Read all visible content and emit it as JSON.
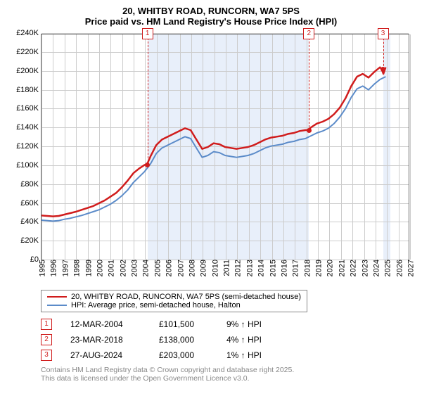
{
  "title_line1": "20, WHITBY ROAD, RUNCORN, WA7 5PS",
  "title_line2": "Price paid vs. HM Land Registry's House Price Index (HPI)",
  "chart": {
    "type": "line",
    "background_color": "#ffffff",
    "plot_border_color": "#666666",
    "grid_color": "#cccccc",
    "shade_color": "#e8effa",
    "marker_color": "#d01c1c",
    "title_fontsize": 13,
    "tick_fontsize": 11,
    "x": {
      "min": 1995,
      "max": 2027,
      "ticks": [
        1995,
        1996,
        1997,
        1998,
        1999,
        2000,
        2001,
        2002,
        2003,
        2004,
        2005,
        2006,
        2007,
        2008,
        2009,
        2010,
        2011,
        2012,
        2013,
        2014,
        2015,
        2016,
        2017,
        2018,
        2019,
        2020,
        2021,
        2022,
        2023,
        2024,
        2025,
        2026,
        2027
      ],
      "labels": [
        "1995",
        "1996",
        "1997",
        "1998",
        "1999",
        "2000",
        "2001",
        "2002",
        "2003",
        "2004",
        "2005",
        "2006",
        "2007",
        "2008",
        "2009",
        "2010",
        "2011",
        "2012",
        "2013",
        "2014",
        "2015",
        "2016",
        "2017",
        "2018",
        "2019",
        "2020",
        "2021",
        "2022",
        "2023",
        "2024",
        "2025",
        "2026",
        "2027"
      ]
    },
    "y": {
      "min": 0,
      "max": 240000,
      "ticks": [
        0,
        20000,
        40000,
        60000,
        80000,
        100000,
        120000,
        140000,
        160000,
        180000,
        200000,
        220000,
        240000
      ],
      "labels": [
        "£0",
        "£20K",
        "£40K",
        "£60K",
        "£80K",
        "£100K",
        "£120K",
        "£140K",
        "£160K",
        "£180K",
        "£200K",
        "£220K",
        "£240K"
      ]
    },
    "shaded_ranges": [
      {
        "x0": 2004.2,
        "x1": 2018.22
      },
      {
        "x0": 2024.65,
        "x1": 2025.3
      }
    ],
    "series": [
      {
        "name": "price_paid",
        "label": "20, WHITBY ROAD, RUNCORN, WA7 5PS (semi-detached house)",
        "color": "#d01c1c",
        "width": 2.5,
        "points": [
          [
            1995.0,
            47000
          ],
          [
            1995.5,
            46500
          ],
          [
            1996.0,
            46000
          ],
          [
            1996.5,
            46500
          ],
          [
            1997.0,
            48000
          ],
          [
            1997.5,
            49500
          ],
          [
            1998.0,
            51000
          ],
          [
            1998.5,
            53000
          ],
          [
            1999.0,
            55000
          ],
          [
            1999.5,
            57000
          ],
          [
            2000.0,
            60000
          ],
          [
            2000.5,
            63000
          ],
          [
            2001.0,
            67000
          ],
          [
            2001.5,
            71000
          ],
          [
            2002.0,
            77000
          ],
          [
            2002.5,
            84000
          ],
          [
            2003.0,
            92000
          ],
          [
            2003.5,
            97000
          ],
          [
            2004.0,
            101000
          ],
          [
            2004.2,
            101500
          ],
          [
            2004.5,
            110000
          ],
          [
            2005.0,
            122000
          ],
          [
            2005.5,
            128000
          ],
          [
            2006.0,
            131000
          ],
          [
            2006.5,
            134000
          ],
          [
            2007.0,
            137000
          ],
          [
            2007.5,
            140000
          ],
          [
            2008.0,
            138000
          ],
          [
            2008.5,
            128000
          ],
          [
            2009.0,
            118000
          ],
          [
            2009.5,
            120000
          ],
          [
            2010.0,
            124000
          ],
          [
            2010.5,
            123000
          ],
          [
            2011.0,
            120000
          ],
          [
            2011.5,
            119000
          ],
          [
            2012.0,
            118000
          ],
          [
            2012.5,
            119000
          ],
          [
            2013.0,
            120000
          ],
          [
            2013.5,
            122000
          ],
          [
            2014.0,
            125000
          ],
          [
            2014.5,
            128000
          ],
          [
            2015.0,
            130000
          ],
          [
            2015.5,
            131000
          ],
          [
            2016.0,
            132000
          ],
          [
            2016.5,
            134000
          ],
          [
            2017.0,
            135000
          ],
          [
            2017.5,
            137000
          ],
          [
            2018.0,
            138000
          ],
          [
            2018.22,
            138000
          ],
          [
            2018.5,
            141000
          ],
          [
            2019.0,
            145000
          ],
          [
            2019.5,
            147000
          ],
          [
            2020.0,
            150000
          ],
          [
            2020.5,
            155000
          ],
          [
            2021.0,
            162000
          ],
          [
            2021.5,
            172000
          ],
          [
            2022.0,
            185000
          ],
          [
            2022.5,
            195000
          ],
          [
            2023.0,
            198000
          ],
          [
            2023.5,
            194000
          ],
          [
            2024.0,
            200000
          ],
          [
            2024.5,
            205000
          ],
          [
            2024.65,
            203000
          ],
          [
            2024.8,
            198000
          ],
          [
            2025.0,
            205000
          ]
        ]
      },
      {
        "name": "hpi",
        "label": "HPI: Average price, semi-detached house, Halton",
        "color": "#5b8bc9",
        "width": 2,
        "points": [
          [
            1995.0,
            42000
          ],
          [
            1995.5,
            41500
          ],
          [
            1996.0,
            41000
          ],
          [
            1996.5,
            41500
          ],
          [
            1997.0,
            43000
          ],
          [
            1997.5,
            44000
          ],
          [
            1998.0,
            45500
          ],
          [
            1998.5,
            47000
          ],
          [
            1999.0,
            49000
          ],
          [
            1999.5,
            51000
          ],
          [
            2000.0,
            53000
          ],
          [
            2000.5,
            56000
          ],
          [
            2001.0,
            59000
          ],
          [
            2001.5,
            63000
          ],
          [
            2002.0,
            68000
          ],
          [
            2002.5,
            74000
          ],
          [
            2003.0,
            82000
          ],
          [
            2003.5,
            88000
          ],
          [
            2004.0,
            94000
          ],
          [
            2004.5,
            102000
          ],
          [
            2005.0,
            113000
          ],
          [
            2005.5,
            119000
          ],
          [
            2006.0,
            122000
          ],
          [
            2006.5,
            125000
          ],
          [
            2007.0,
            128000
          ],
          [
            2007.5,
            131000
          ],
          [
            2008.0,
            129000
          ],
          [
            2008.5,
            119000
          ],
          [
            2009.0,
            109000
          ],
          [
            2009.5,
            111000
          ],
          [
            2010.0,
            115000
          ],
          [
            2010.5,
            114000
          ],
          [
            2011.0,
            111000
          ],
          [
            2011.5,
            110000
          ],
          [
            2012.0,
            109000
          ],
          [
            2012.5,
            110000
          ],
          [
            2013.0,
            111000
          ],
          [
            2013.5,
            113000
          ],
          [
            2014.0,
            116000
          ],
          [
            2014.5,
            119000
          ],
          [
            2015.0,
            121000
          ],
          [
            2015.5,
            122000
          ],
          [
            2016.0,
            123000
          ],
          [
            2016.5,
            125000
          ],
          [
            2017.0,
            126000
          ],
          [
            2017.5,
            128000
          ],
          [
            2018.0,
            129000
          ],
          [
            2018.5,
            132000
          ],
          [
            2019.0,
            135000
          ],
          [
            2019.5,
            137000
          ],
          [
            2020.0,
            140000
          ],
          [
            2020.5,
            145000
          ],
          [
            2021.0,
            152000
          ],
          [
            2021.5,
            161000
          ],
          [
            2022.0,
            173000
          ],
          [
            2022.5,
            182000
          ],
          [
            2023.0,
            185000
          ],
          [
            2023.5,
            181000
          ],
          [
            2024.0,
            187000
          ],
          [
            2024.5,
            192000
          ],
          [
            2025.0,
            195000
          ]
        ]
      }
    ],
    "event_markers": [
      {
        "num": "1",
        "x": 2004.2,
        "y": 101500
      },
      {
        "num": "2",
        "x": 2018.22,
        "y": 138000
      },
      {
        "num": "3",
        "x": 2024.65,
        "y": 203000
      }
    ]
  },
  "legend": {
    "items": [
      {
        "color": "#d01c1c",
        "label": "20, WHITBY ROAD, RUNCORN, WA7 5PS (semi-detached house)"
      },
      {
        "color": "#5b8bc9",
        "label": "HPI: Average price, semi-detached house, Halton"
      }
    ]
  },
  "transactions": [
    {
      "num": "1",
      "date": "12-MAR-2004",
      "price": "£101,500",
      "pct": "9% ↑ HPI"
    },
    {
      "num": "2",
      "date": "23-MAR-2018",
      "price": "£138,000",
      "pct": "4% ↑ HPI"
    },
    {
      "num": "3",
      "date": "27-AUG-2024",
      "price": "£203,000",
      "pct": "1% ↑ HPI"
    }
  ],
  "footnote_line1": "Contains HM Land Registry data © Crown copyright and database right 2025.",
  "footnote_line2": "This data is licensed under the Open Government Licence v3.0.",
  "colors": {
    "footnote": "#888888",
    "marker_border": "#d01c1c"
  }
}
